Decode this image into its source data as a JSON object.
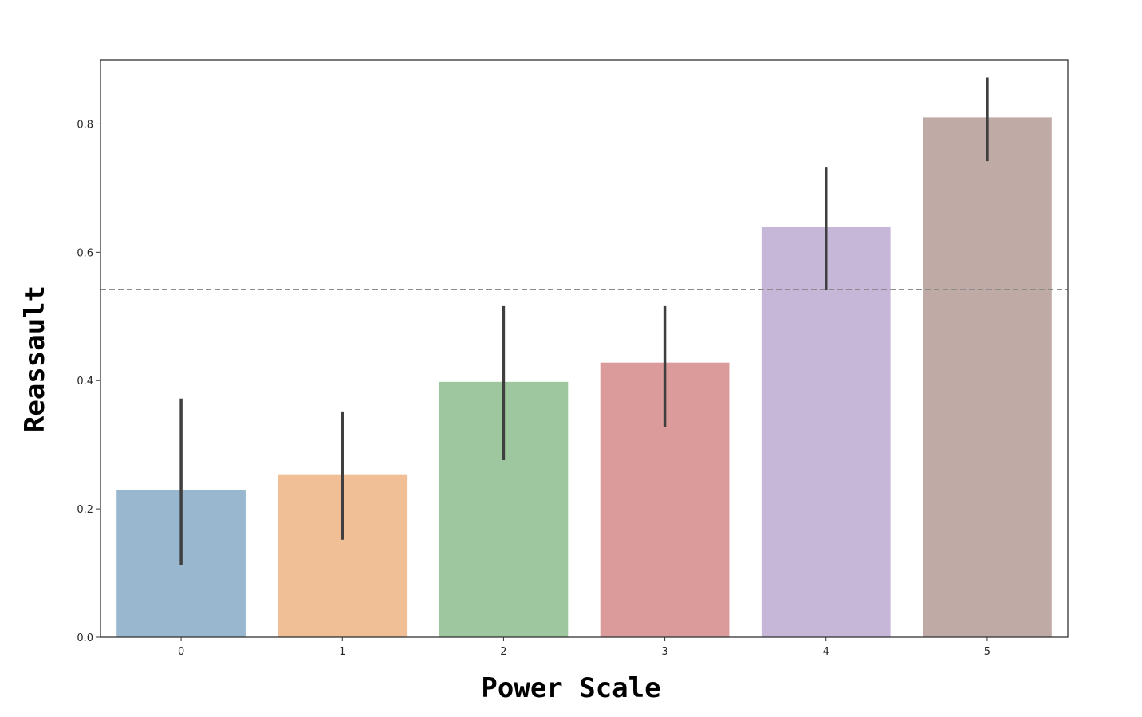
{
  "chart_data": {
    "type": "bar",
    "title": "",
    "xlabel": "Power Scale",
    "ylabel": "Reassault",
    "categories": [
      "0",
      "1",
      "2",
      "3",
      "4",
      "5"
    ],
    "values": [
      0.23,
      0.254,
      0.398,
      0.428,
      0.64,
      0.81
    ],
    "error_low": [
      0.113,
      0.152,
      0.276,
      0.328,
      0.542,
      0.742
    ],
    "error_high": [
      0.372,
      0.352,
      0.516,
      0.516,
      0.732,
      0.872
    ],
    "colors": [
      "#99b8d0",
      "#f0bf95",
      "#9fc79f",
      "#dc9b9b",
      "#c6b7d8",
      "#bfaaa5"
    ],
    "reference_line": {
      "value": 0.542,
      "style": "dashed",
      "color": "#8c8c8c"
    },
    "ylim": [
      0,
      0.9
    ],
    "yticks": [
      "0.0",
      "0.2",
      "0.4",
      "0.6",
      "0.8"
    ],
    "ytick_values": [
      0,
      0.2,
      0.4,
      0.6,
      0.8
    ],
    "grid": false,
    "legend": "none"
  }
}
